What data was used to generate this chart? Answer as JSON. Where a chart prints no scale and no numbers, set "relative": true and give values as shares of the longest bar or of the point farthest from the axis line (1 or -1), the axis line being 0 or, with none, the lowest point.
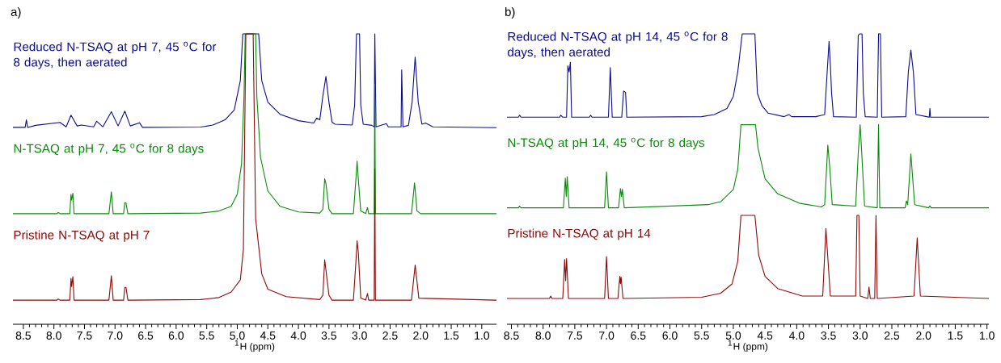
{
  "chart_data": [
    {
      "type": "line",
      "title": "a)",
      "xlabel": "$^{1}$H (ppm)",
      "relative": true,
      "xlim": [
        8.67,
        0.76
      ],
      "xticks": [
        8.5,
        {
          "value": 8,
          "label": "8.0"
        },
        7.5,
        {
          "value": 7,
          "label": "7.0"
        },
        6.5,
        {
          "value": 6,
          "label": "6.0"
        },
        5.5,
        {
          "value": 5,
          "label": "5.0"
        },
        4.5,
        {
          "value": 4,
          "label": "4.0"
        },
        3.5,
        {
          "value": 3,
          "label": "3.0"
        },
        2.5,
        {
          "value": 2,
          "label": "2.0"
        },
        1.5,
        {
          "value": 1,
          "label": "1.0"
        }
      ],
      "series": [
        {
          "name": "Reduced N-TSAQ at pH 7, 45 $^{o}$C for 8 days, then aerated",
          "color": "#0d0d8c",
          "x": [
            8.67,
            8.47,
            8.45,
            8.43,
            8.3,
            7.9,
            7.8,
            7.72,
            7.62,
            7.55,
            7.35,
            7.3,
            7.2,
            7.06,
            6.95,
            6.84,
            6.75,
            6.6,
            6.55,
            5.6,
            5.4,
            5.2,
            5.05,
            4.95,
            4.91,
            4.65,
            4.6,
            4.5,
            4.3,
            4.0,
            3.75,
            3.7,
            3.65,
            3.6,
            3.55,
            3.5,
            3.45,
            3.4,
            3.12,
            3.08,
            3.05,
            3.0,
            2.98,
            2.94,
            2.8,
            2.76,
            2.75,
            2.73,
            2.56,
            2.53,
            2.32,
            2.31,
            2.29,
            2.2,
            2.14,
            2.09,
            2.04,
            1.98,
            1.92,
            1.8,
            0.76
          ],
          "values": [
            0.678,
            0.678,
            0.704,
            0.678,
            0.685,
            0.695,
            0.68,
            0.72,
            0.683,
            0.686,
            0.68,
            0.699,
            0.68,
            0.732,
            0.683,
            0.734,
            0.683,
            0.694,
            0.678,
            0.679,
            0.686,
            0.704,
            0.738,
            0.839,
            1.0,
            1.0,
            0.839,
            0.765,
            0.723,
            0.701,
            0.693,
            0.71,
            0.704,
            0.786,
            0.853,
            0.765,
            0.696,
            0.689,
            0.686,
            0.754,
            1.0,
            1.0,
            0.754,
            0.689,
            0.685,
            0.68,
            1.0,
            0.68,
            0.691,
            0.68,
            0.68,
            0.876,
            0.68,
            0.685,
            0.765,
            0.92,
            0.765,
            0.689,
            0.693,
            0.68,
            0.677
          ]
        },
        {
          "name": "N-TSAQ at pH 7, 45 $^{o}$C for 8 days",
          "color": "#0a8a0a",
          "x": [
            8.67,
            7.95,
            7.93,
            7.9,
            7.74,
            7.72,
            7.71,
            7.69,
            7.67,
            7.1,
            7.06,
            7.03,
            6.86,
            6.84,
            6.82,
            6.79,
            5.6,
            5.3,
            5.1,
            5.0,
            4.93,
            4.89,
            4.87,
            4.7,
            4.68,
            4.62,
            4.5,
            4.3,
            4.0,
            3.65,
            3.6,
            3.57,
            3.55,
            3.5,
            3.45,
            3.1,
            3.06,
            3.04,
            3.02,
            3.01,
            2.98,
            2.9,
            2.87,
            2.85,
            2.76,
            2.75,
            2.74,
            2.15,
            2.1,
            2.06,
            2.0,
            0.76
          ],
          "values": [
            0.381,
            0.381,
            0.385,
            0.381,
            0.381,
            0.448,
            0.427,
            0.451,
            0.381,
            0.381,
            0.456,
            0.381,
            0.381,
            0.419,
            0.417,
            0.381,
            0.383,
            0.39,
            0.406,
            0.448,
            0.554,
            0.786,
            1.0,
            1.0,
            0.786,
            0.575,
            0.459,
            0.406,
            0.387,
            0.383,
            0.396,
            0.501,
            0.485,
            0.396,
            0.381,
            0.381,
            0.498,
            0.562,
            0.501,
            0.473,
            0.39,
            0.381,
            0.402,
            0.381,
            0.381,
            0.826,
            0.381,
            0.381,
            0.487,
            0.39,
            0.381,
            0.381
          ]
        },
        {
          "name": "Pristine N-TSAQ at pH 7",
          "color": "#8b0a0a",
          "x": [
            8.67,
            7.95,
            7.93,
            7.9,
            7.74,
            7.72,
            7.71,
            7.69,
            7.67,
            7.1,
            7.06,
            7.03,
            6.86,
            6.84,
            6.82,
            6.79,
            5.6,
            5.3,
            5.1,
            4.95,
            4.9,
            4.86,
            4.74,
            4.7,
            4.6,
            4.5,
            4.2,
            3.65,
            3.6,
            3.57,
            3.5,
            3.45,
            3.1,
            3.06,
            3.04,
            3.02,
            2.98,
            2.9,
            2.87,
            2.85,
            2.76,
            2.75,
            2.74,
            2.15,
            2.09,
            2.03,
            0.76
          ],
          "values": [
            0.083,
            0.083,
            0.087,
            0.083,
            0.083,
            0.158,
            0.13,
            0.164,
            0.083,
            0.083,
            0.167,
            0.083,
            0.083,
            0.127,
            0.127,
            0.083,
            0.085,
            0.092,
            0.111,
            0.153,
            0.258,
            1.0,
            1.0,
            0.364,
            0.174,
            0.121,
            0.095,
            0.085,
            0.1,
            0.222,
            0.1,
            0.083,
            0.083,
            0.214,
            0.287,
            0.248,
            0.09,
            0.083,
            0.106,
            0.083,
            0.083,
            0.536,
            0.083,
            0.083,
            0.204,
            0.09,
            0.083
          ]
        }
      ]
    },
    {
      "type": "line",
      "title": "b)",
      "xlabel": "$^{1}$H (ppm)",
      "relative": true,
      "xlim": [
        8.57,
        0.97
      ],
      "xticks": [
        8.5,
        {
          "value": 8,
          "label": "8.0"
        },
        7.5,
        {
          "value": 7,
          "label": "7.0"
        },
        6.5,
        {
          "value": 6,
          "label": "6.0"
        },
        5.5,
        {
          "value": 5,
          "label": "5.0"
        },
        4.5,
        {
          "value": 4,
          "label": "4.0"
        },
        3.5,
        {
          "value": 3,
          "label": "3.0"
        },
        2.5,
        {
          "value": 2,
          "label": "2.0"
        },
        1.5,
        {
          "value": 1,
          "label": "1.0"
        }
      ],
      "series": [
        {
          "name": "Reduced N-TSAQ at pH 14, 45 $^{o}$C for 8 days, then aerated",
          "color": "#0d0d8c",
          "x": [
            8.57,
            8.39,
            8.37,
            8.35,
            7.74,
            7.72,
            7.69,
            7.63,
            7.61,
            7.59,
            7.57,
            7.55,
            7.27,
            7.25,
            7.23,
            6.97,
            6.94,
            6.91,
            6.76,
            6.73,
            6.7,
            6.68,
            5.5,
            5.3,
            5.1,
            5.0,
            4.93,
            4.86,
            4.66,
            4.62,
            4.55,
            4.45,
            4.2,
            4.12,
            4.08,
            3.7,
            3.56,
            3.52,
            3.49,
            3.47,
            3.45,
            3.42,
            3.06,
            3.03,
            3.01,
            2.97,
            2.95,
            2.92,
            2.73,
            2.71,
            2.68,
            2.66,
            2.28,
            2.24,
            2.2,
            2.16,
            2.12,
            1.95,
            1.91,
            1.9,
            1.89,
            0.97
          ],
          "values": [
            0.713,
            0.713,
            0.72,
            0.713,
            0.713,
            0.72,
            0.713,
            0.713,
            0.89,
            0.869,
            0.902,
            0.713,
            0.713,
            0.72,
            0.713,
            0.713,
            0.884,
            0.713,
            0.713,
            0.803,
            0.799,
            0.713,
            0.715,
            0.722,
            0.743,
            0.785,
            0.869,
            1.0,
            1.0,
            0.795,
            0.753,
            0.727,
            0.715,
            0.722,
            0.715,
            0.715,
            0.722,
            0.869,
            0.974,
            0.895,
            0.795,
            0.715,
            0.713,
            0.995,
            1.0,
            1.0,
            0.795,
            0.715,
            0.713,
            1.0,
            1.0,
            0.713,
            0.715,
            0.869,
            0.944,
            0.869,
            0.722,
            0.715,
            0.713,
            0.743,
            0.713,
            0.713
          ]
        },
        {
          "name": "N-TSAQ at pH 14, 45 $^{o}$C for 8 days",
          "color": "#0a8a0a",
          "x": [
            8.57,
            8.39,
            8.37,
            8.35,
            7.68,
            7.65,
            7.635,
            7.62,
            7.59,
            7.03,
            7.0,
            6.97,
            6.81,
            6.78,
            6.765,
            6.75,
            6.72,
            5.4,
            5.2,
            5.0,
            4.93,
            4.88,
            4.65,
            4.61,
            4.5,
            4.3,
            3.96,
            3.61,
            3.56,
            3.51,
            3.48,
            3.44,
            3.07,
            3.03,
            3.0,
            2.98,
            2.93,
            2.73,
            2.71,
            2.69,
            2.29,
            2.27,
            2.25,
            2.2,
            2.14,
            1.92,
            1.9,
            1.88,
            0.97
          ],
          "values": [
            0.401,
            0.401,
            0.407,
            0.401,
            0.401,
            0.503,
            0.44,
            0.508,
            0.401,
            0.401,
            0.525,
            0.401,
            0.401,
            0.467,
            0.44,
            0.465,
            0.401,
            0.412,
            0.422,
            0.464,
            0.533,
            0.687,
            0.687,
            0.606,
            0.501,
            0.449,
            0.417,
            0.404,
            0.412,
            0.617,
            0.543,
            0.412,
            0.407,
            0.59,
            0.687,
            0.611,
            0.407,
            0.401,
            0.687,
            0.401,
            0.401,
            0.425,
            0.412,
            0.587,
            0.412,
            0.401,
            0.408,
            0.401,
            0.401
          ]
        },
        {
          "name": "Pristine N-TSAQ at pH 14",
          "color": "#8b0a0a",
          "x": [
            8.57,
            7.9,
            7.88,
            7.86,
            7.69,
            7.66,
            7.645,
            7.63,
            7.6,
            7.03,
            7.0,
            6.97,
            6.82,
            6.79,
            6.78,
            6.77,
            6.74,
            5.5,
            5.2,
            5.02,
            4.93,
            4.88,
            4.66,
            4.6,
            4.5,
            4.3,
            3.91,
            3.59,
            3.54,
            3.47,
            3.07,
            3.05,
            3.02,
            3.0,
            2.88,
            2.86,
            2.84,
            2.77,
            2.75,
            2.73,
            2.15,
            2.1,
            2.05,
            0.97
          ],
          "values": [
            0.089,
            0.089,
            0.097,
            0.089,
            0.089,
            0.223,
            0.15,
            0.226,
            0.089,
            0.089,
            0.233,
            0.089,
            0.089,
            0.165,
            0.14,
            0.162,
            0.089,
            0.093,
            0.107,
            0.139,
            0.217,
            0.375,
            0.375,
            0.238,
            0.165,
            0.123,
            0.097,
            0.097,
            0.33,
            0.097,
            0.097,
            0.375,
            0.375,
            0.097,
            0.089,
            0.128,
            0.089,
            0.089,
            0.375,
            0.089,
            0.097,
            0.298,
            0.097,
            0.089
          ]
        }
      ]
    }
  ]
}
